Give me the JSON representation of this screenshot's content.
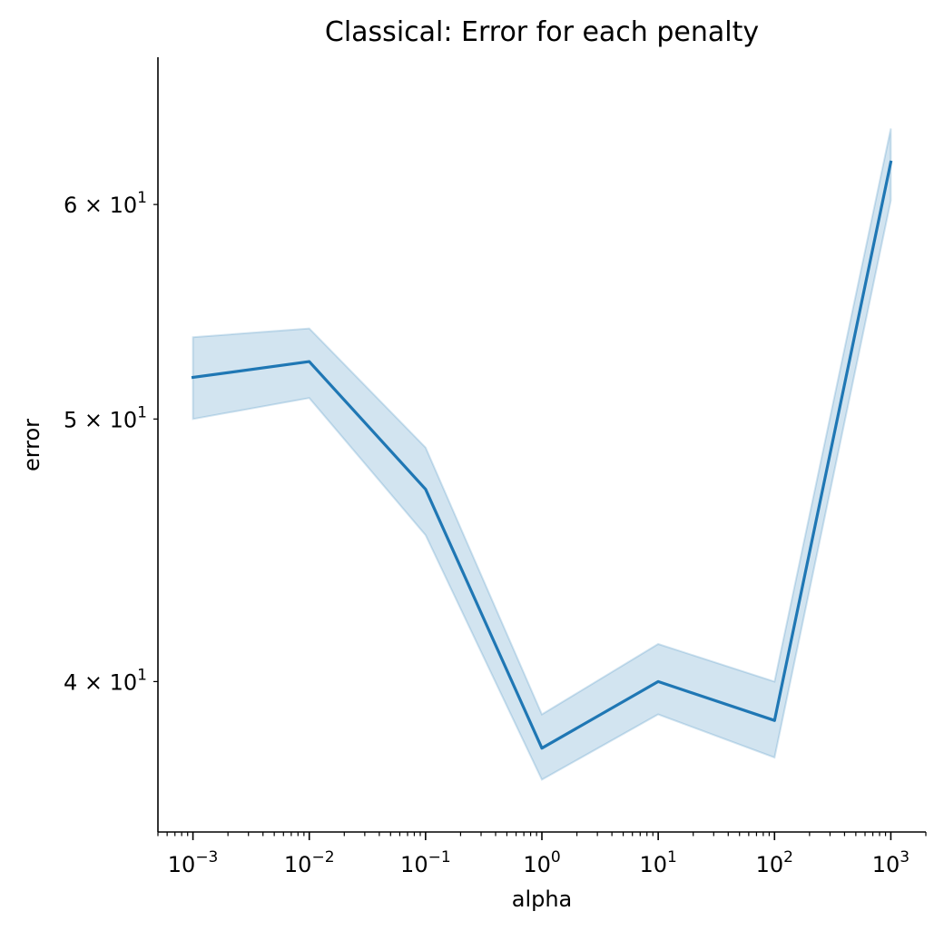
{
  "chart_data": {
    "type": "line",
    "title": "Classical: Error for each penalty",
    "xlabel": "alpha",
    "ylabel": "error",
    "xscale": "log",
    "yscale": "log",
    "xlim": [
      0.0005,
      2000
    ],
    "ylim": [
      35.2,
      68.0
    ],
    "x_ticks": [
      {
        "value": 0.001,
        "base": "10",
        "exp": "−3"
      },
      {
        "value": 0.01,
        "base": "10",
        "exp": "−2"
      },
      {
        "value": 0.1,
        "base": "10",
        "exp": "−1"
      },
      {
        "value": 1,
        "base": "10",
        "exp": "0"
      },
      {
        "value": 10,
        "base": "10",
        "exp": "1"
      },
      {
        "value": 100,
        "base": "10",
        "exp": "2"
      },
      {
        "value": 1000,
        "base": "10",
        "exp": "3"
      }
    ],
    "y_ticks": [
      {
        "value": 40,
        "mant": "4",
        "base": "10",
        "exp": "1"
      },
      {
        "value": 50,
        "mant": "5",
        "base": "10",
        "exp": "1"
      },
      {
        "value": 60,
        "mant": "6",
        "base": "10",
        "exp": "1"
      }
    ],
    "grid": false,
    "line_color": "#1f77b4",
    "band_color": "#1f77b4",
    "series": [
      {
        "x": [
          0.001,
          0.01,
          0.1,
          1,
          10,
          100,
          1000
        ],
        "y": [
          51.8,
          52.5,
          47.1,
          37.8,
          40.0,
          38.7,
          62.2
        ],
        "ci_low": [
          50.0,
          50.9,
          45.3,
          36.8,
          38.9,
          37.5,
          60.2
        ],
        "ci_high": [
          53.6,
          54.0,
          48.8,
          38.9,
          41.3,
          40.0,
          64.0
        ]
      }
    ]
  }
}
